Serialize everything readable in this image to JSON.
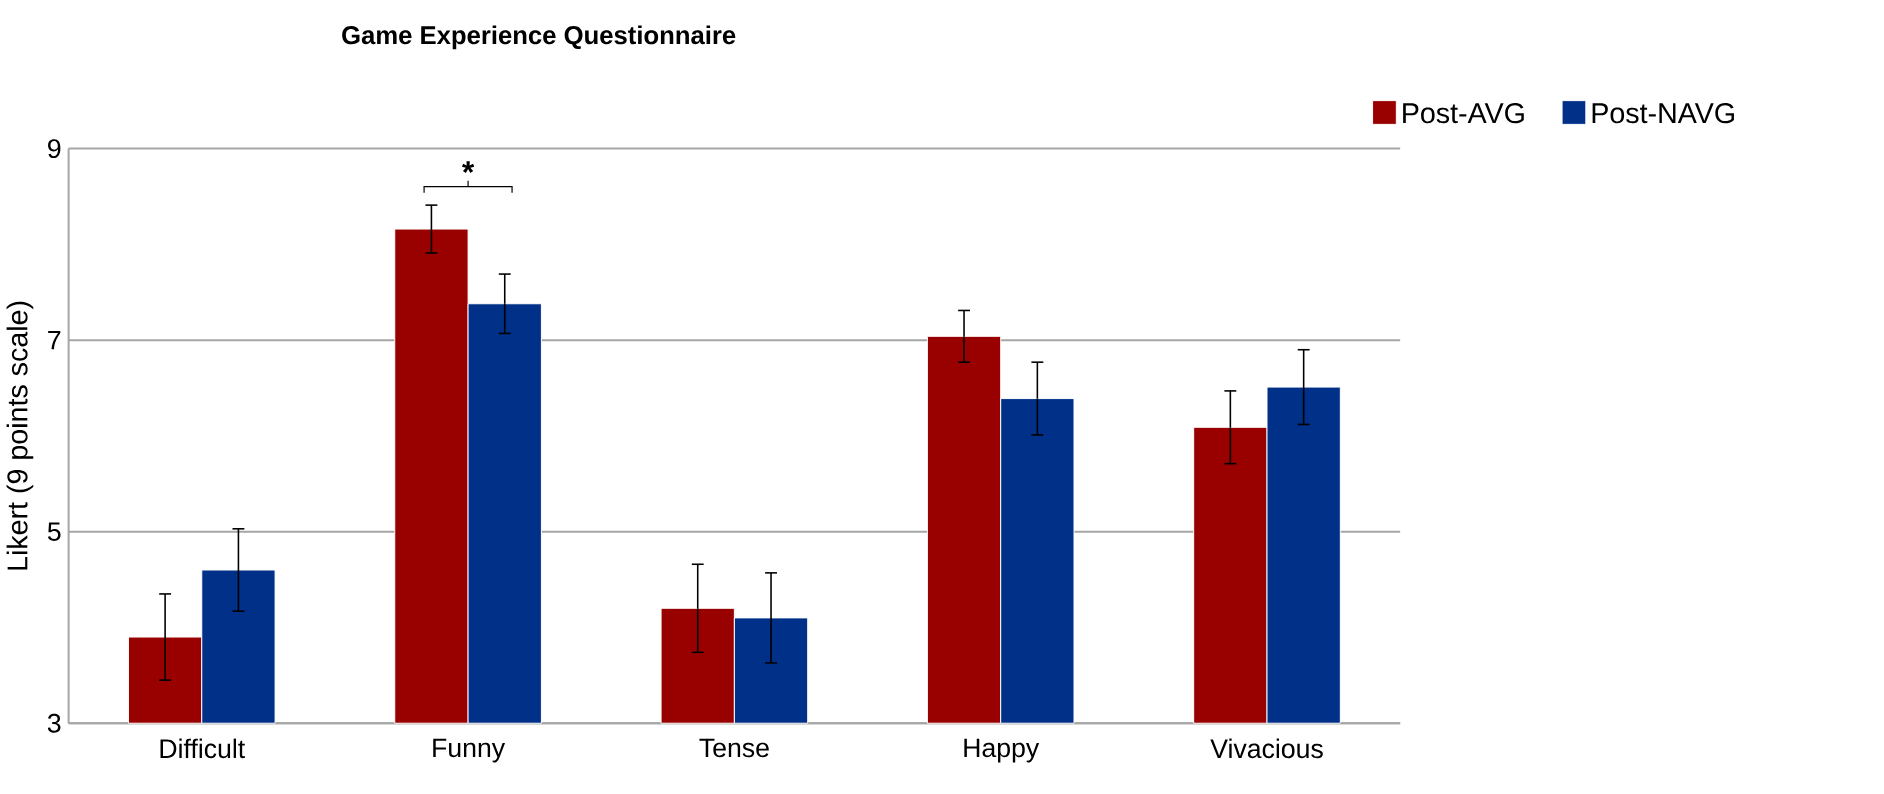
{
  "chart_data": {
    "type": "bar",
    "title": "Game Experience Questionnaire",
    "ylabel": "Likert (9 points scale)",
    "categories": [
      "Difficult",
      "Funny",
      "Tense",
      "Happy",
      "Vivacious"
    ],
    "series": [
      {
        "name": "Post-AVG",
        "color": "#990000",
        "values": [
          3.9,
          8.16,
          4.2,
          7.04,
          6.09
        ],
        "errors": [
          0.45,
          0.25,
          0.46,
          0.27,
          0.38
        ]
      },
      {
        "name": "Post-NAVG",
        "color": "#003087",
        "values": [
          4.6,
          7.38,
          4.1,
          6.39,
          6.51
        ],
        "errors": [
          0.43,
          0.31,
          0.47,
          0.38,
          0.39
        ]
      }
    ],
    "ylim": [
      3,
      9
    ],
    "yticks": [
      3,
      5,
      7,
      9
    ],
    "grid": "y",
    "legend": "top right",
    "annotations": [
      "*"
    ]
  }
}
